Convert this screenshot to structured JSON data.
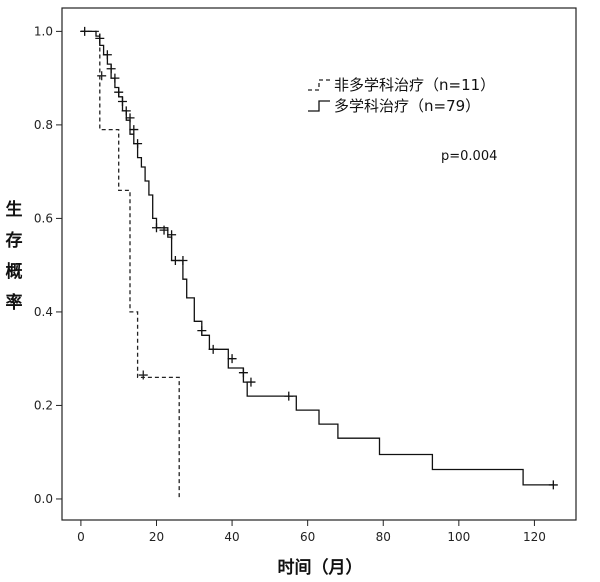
{
  "chart_data": {
    "type": "line",
    "title": "",
    "xlabel": "时间（月）",
    "ylabel": "生存概率",
    "xlim": [
      -5,
      131
    ],
    "ylim": [
      -0.045,
      1.05
    ],
    "xticks": [
      0,
      20,
      40,
      60,
      80,
      100,
      120
    ],
    "yticks": [
      0.0,
      0.2,
      0.4,
      0.6,
      0.8,
      1.0
    ],
    "xtick_labels": [
      "0",
      "20",
      "40",
      "60",
      "80",
      "100",
      "120"
    ],
    "ytick_labels": [
      "0.0",
      "0.2",
      "0.4",
      "0.6",
      "0.8",
      "1.0"
    ],
    "grid": false,
    "legend_position": "top-right",
    "annotations": [
      {
        "text": "p=0.004"
      }
    ],
    "series": [
      {
        "name": "非多学科治疗（n=11）",
        "line_style": "dashed",
        "color": "#222222",
        "steps": [
          [
            0,
            1.0
          ],
          [
            5,
            1.0
          ],
          [
            5,
            0.79
          ],
          [
            10,
            0.79
          ],
          [
            10,
            0.66
          ],
          [
            13,
            0.66
          ],
          [
            13,
            0.4
          ],
          [
            15,
            0.4
          ],
          [
            15,
            0.26
          ],
          [
            26,
            0.26
          ],
          [
            26,
            0.0
          ]
        ],
        "censored": [
          [
            5.5,
            0.905
          ],
          [
            16.5,
            0.265
          ]
        ]
      },
      {
        "name": "多学科治疗（n=79）",
        "line_style": "solid",
        "color": "#111111",
        "steps": [
          [
            0,
            1.0
          ],
          [
            4,
            1.0
          ],
          [
            4,
            0.99
          ],
          [
            5,
            0.99
          ],
          [
            5,
            0.97
          ],
          [
            6,
            0.97
          ],
          [
            6,
            0.95
          ],
          [
            7,
            0.95
          ],
          [
            7,
            0.93
          ],
          [
            8,
            0.93
          ],
          [
            8,
            0.9
          ],
          [
            9,
            0.9
          ],
          [
            9,
            0.88
          ],
          [
            10,
            0.88
          ],
          [
            10,
            0.86
          ],
          [
            11,
            0.86
          ],
          [
            11,
            0.83
          ],
          [
            12,
            0.83
          ],
          [
            12,
            0.81
          ],
          [
            13,
            0.81
          ],
          [
            13,
            0.78
          ],
          [
            14,
            0.78
          ],
          [
            14,
            0.76
          ],
          [
            15,
            0.76
          ],
          [
            15,
            0.73
          ],
          [
            16,
            0.73
          ],
          [
            16,
            0.71
          ],
          [
            17,
            0.71
          ],
          [
            17,
            0.68
          ],
          [
            18,
            0.68
          ],
          [
            18,
            0.65
          ],
          [
            19,
            0.65
          ],
          [
            19,
            0.6
          ],
          [
            20,
            0.6
          ],
          [
            20,
            0.58
          ],
          [
            23,
            0.58
          ],
          [
            23,
            0.56
          ],
          [
            24,
            0.56
          ],
          [
            24,
            0.51
          ],
          [
            27,
            0.51
          ],
          [
            27,
            0.47
          ],
          [
            28,
            0.47
          ],
          [
            28,
            0.43
          ],
          [
            30,
            0.43
          ],
          [
            30,
            0.38
          ],
          [
            32,
            0.38
          ],
          [
            32,
            0.35
          ],
          [
            34,
            0.35
          ],
          [
            34,
            0.32
          ],
          [
            39,
            0.32
          ],
          [
            39,
            0.28
          ],
          [
            43,
            0.28
          ],
          [
            43,
            0.25
          ],
          [
            44,
            0.25
          ],
          [
            44,
            0.22
          ],
          [
            57,
            0.22
          ],
          [
            57,
            0.19
          ],
          [
            63,
            0.19
          ],
          [
            63,
            0.16
          ],
          [
            68,
            0.16
          ],
          [
            68,
            0.13
          ],
          [
            79,
            0.13
          ],
          [
            79,
            0.095
          ],
          [
            93,
            0.095
          ],
          [
            93,
            0.063
          ],
          [
            117,
            0.063
          ],
          [
            117,
            0.03
          ],
          [
            125,
            0.03
          ]
        ],
        "censored": [
          [
            1,
            1.0
          ],
          [
            5,
            0.985
          ],
          [
            7,
            0.95
          ],
          [
            8,
            0.92
          ],
          [
            9,
            0.9
          ],
          [
            10,
            0.87
          ],
          [
            11,
            0.85
          ],
          [
            12,
            0.83
          ],
          [
            13,
            0.815
          ],
          [
            14,
            0.79
          ],
          [
            15,
            0.76
          ],
          [
            20,
            0.58
          ],
          [
            22,
            0.575
          ],
          [
            24,
            0.565
          ],
          [
            25,
            0.51
          ],
          [
            27,
            0.51
          ],
          [
            32,
            0.36
          ],
          [
            35,
            0.32
          ],
          [
            40,
            0.3
          ],
          [
            43,
            0.27
          ],
          [
            45,
            0.25
          ],
          [
            55,
            0.22
          ],
          [
            125,
            0.03
          ]
        ]
      }
    ]
  }
}
